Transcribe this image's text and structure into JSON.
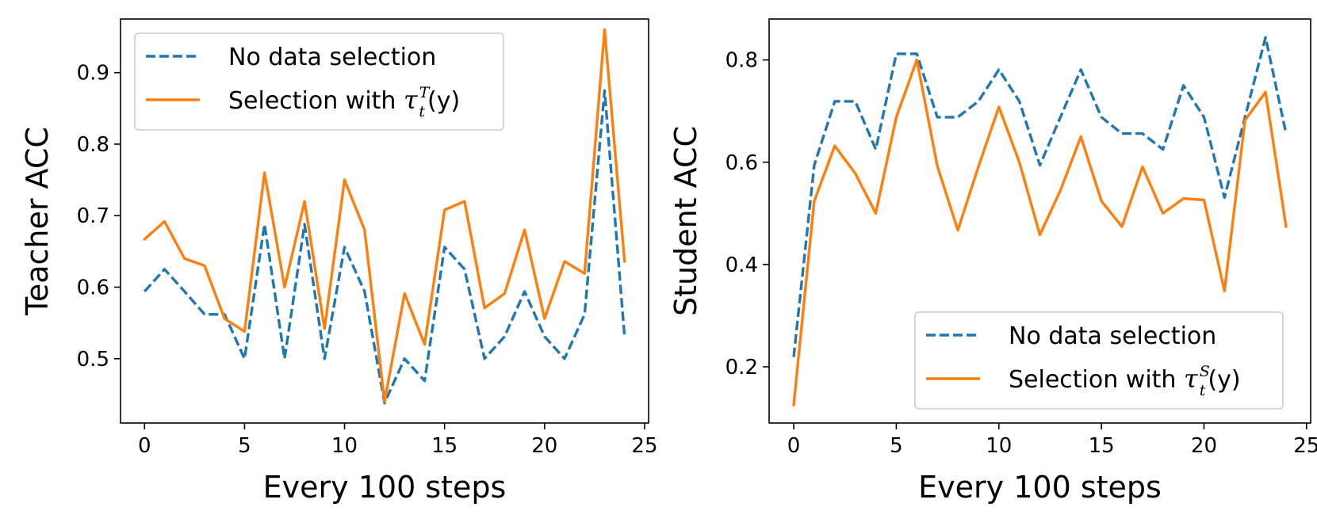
{
  "chart_data": [
    {
      "type": "line",
      "xlabel": "Every 100 steps",
      "ylabel": "Teacher ACC",
      "xlim": [
        -1.2,
        25.2
      ],
      "ylim": [
        0.41,
        0.975
      ],
      "xticks": [
        0,
        5,
        10,
        15,
        20,
        25
      ],
      "xtick_labels": [
        "0",
        "5",
        "10",
        "15",
        "20",
        "25"
      ],
      "yticks": [
        0.5,
        0.6,
        0.7,
        0.8,
        0.9
      ],
      "ytick_labels": [
        "0.5",
        "0.6",
        "0.7",
        "0.8",
        "0.9"
      ],
      "legend_position": "top-left",
      "x": [
        0,
        1,
        2,
        3,
        4,
        5,
        6,
        7,
        8,
        9,
        10,
        11,
        12,
        13,
        14,
        15,
        16,
        17,
        18,
        19,
        20,
        21,
        22,
        23,
        24
      ],
      "series": [
        {
          "name": "No data selection",
          "legend_main": "No data selection",
          "color": "#1f77b4",
          "style": "dashed",
          "values": [
            0.594,
            0.625,
            0.594,
            0.562,
            0.562,
            0.5,
            0.688,
            0.5,
            0.688,
            0.5,
            0.656,
            0.594,
            0.438,
            0.5,
            0.469,
            0.656,
            0.625,
            0.5,
            0.531,
            0.594,
            0.531,
            0.5,
            0.562,
            0.875,
            0.531
          ]
        },
        {
          "name": "Selection with τ_t^T(y)",
          "legend_main": "Selection with ",
          "legend_tau": "τ",
          "legend_sup": "T",
          "legend_sub": "t",
          "legend_arg": "(y)",
          "color": "#ff7f0e",
          "style": "solid",
          "values": [
            0.667,
            0.692,
            0.64,
            0.63,
            0.556,
            0.538,
            0.76,
            0.6,
            0.72,
            0.542,
            0.75,
            0.68,
            0.44,
            0.591,
            0.52,
            0.708,
            0.72,
            0.571,
            0.591,
            0.68,
            0.556,
            0.636,
            0.619,
            0.96,
            0.636
          ]
        }
      ]
    },
    {
      "type": "line",
      "xlabel": "Every 100 steps",
      "ylabel": "Student ACC",
      "xlim": [
        -1.2,
        25.2
      ],
      "ylim": [
        0.09,
        0.88
      ],
      "xticks": [
        0,
        5,
        10,
        15,
        20,
        25
      ],
      "xtick_labels": [
        "0",
        "5",
        "10",
        "15",
        "20",
        "25"
      ],
      "yticks": [
        0.2,
        0.4,
        0.6,
        0.8
      ],
      "ytick_labels": [
        "0.2",
        "0.4",
        "0.6",
        "0.8"
      ],
      "legend_position": "lower-right",
      "x": [
        0,
        1,
        2,
        3,
        4,
        5,
        6,
        7,
        8,
        9,
        10,
        11,
        12,
        13,
        14,
        15,
        16,
        17,
        18,
        19,
        20,
        21,
        22,
        23,
        24
      ],
      "series": [
        {
          "name": "No data selection",
          "legend_main": "No data selection",
          "color": "#1f77b4",
          "style": "dashed",
          "values": [
            0.219,
            0.594,
            0.719,
            0.719,
            0.625,
            0.812,
            0.812,
            0.688,
            0.688,
            0.719,
            0.781,
            0.719,
            0.594,
            0.688,
            0.781,
            0.688,
            0.656,
            0.656,
            0.625,
            0.75,
            0.688,
            0.531,
            0.688,
            0.844,
            0.656
          ]
        },
        {
          "name": "Selection with τ_t^S(y)",
          "legend_main": "Selection with ",
          "legend_tau": "τ",
          "legend_sup": "S",
          "legend_sub": "t",
          "legend_arg": "(y)",
          "color": "#ff7f0e",
          "style": "solid",
          "values": [
            0.125,
            0.524,
            0.632,
            0.578,
            0.5,
            0.688,
            0.8,
            0.593,
            0.467,
            0.591,
            0.708,
            0.6,
            0.458,
            0.545,
            0.65,
            0.524,
            0.474,
            0.591,
            0.5,
            0.529,
            0.526,
            0.348,
            0.682,
            0.737,
            0.474
          ]
        }
      ]
    }
  ]
}
